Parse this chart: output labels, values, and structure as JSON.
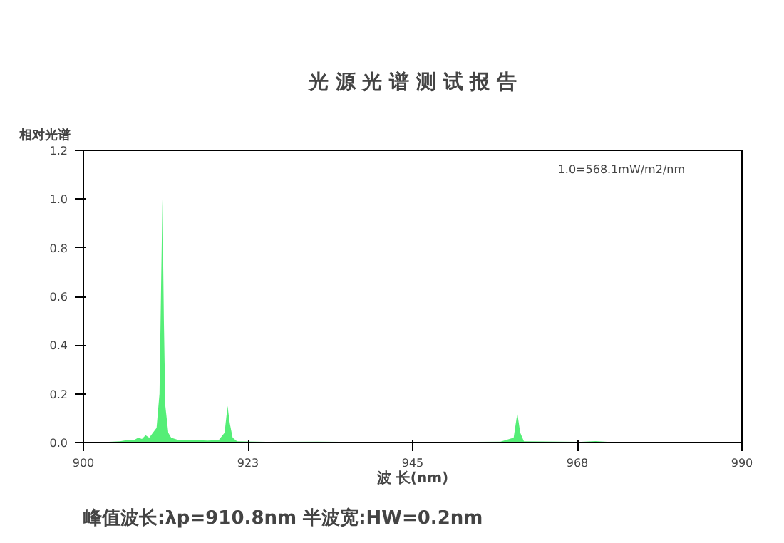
{
  "chart_data": {
    "type": "area",
    "title": "光 源 光 谱 测 试 报 告",
    "xlabel": "波 长(nm)",
    "ylabel": "相对光谱",
    "x": [
      900,
      903,
      905,
      906,
      907,
      907.5,
      908,
      908.5,
      909,
      909.5,
      910,
      910.4,
      910.6,
      910.8,
      911.0,
      911.2,
      911.6,
      912,
      913,
      915,
      917,
      918.5,
      919.3,
      919.7,
      920.0,
      920.4,
      921,
      925,
      932,
      940,
      950,
      957,
      958.8,
      959.3,
      959.7,
      960.2,
      968,
      970,
      972,
      980,
      990
    ],
    "series": [
      {
        "color": "#55ee77",
        "values": [
          0,
          0.002,
          0.005,
          0.01,
          0.012,
          0.02,
          0.015,
          0.03,
          0.02,
          0.04,
          0.06,
          0.2,
          0.6,
          1.0,
          0.5,
          0.15,
          0.04,
          0.02,
          0.01,
          0.01,
          0.008,
          0.01,
          0.04,
          0.15,
          0.08,
          0.02,
          0.005,
          0.003,
          0.004,
          0.002,
          0.002,
          0.004,
          0.02,
          0.12,
          0.04,
          0.005,
          0.003,
          0.006,
          0.002,
          0.001,
          0
        ]
      }
    ],
    "xlim": [
      900,
      990
    ],
    "xticks": [
      900,
      {
        "value": 922.5,
        "label": "923"
      },
      945,
      {
        "value": 967.5,
        "label": "968"
      },
      990
    ],
    "ylim": [
      0,
      1.2
    ],
    "yticks": [
      {
        "value": 0,
        "label": "0.0"
      },
      0.2,
      0.4,
      0.6,
      0.8,
      {
        "value": 1,
        "label": "1.0"
      },
      1.2
    ],
    "grid": false,
    "annotations": [
      "1.0=568.1mW/m2/nm",
      "峰值波长:λp=910.8nm   半波宽:HW=0.2nm"
    ]
  }
}
